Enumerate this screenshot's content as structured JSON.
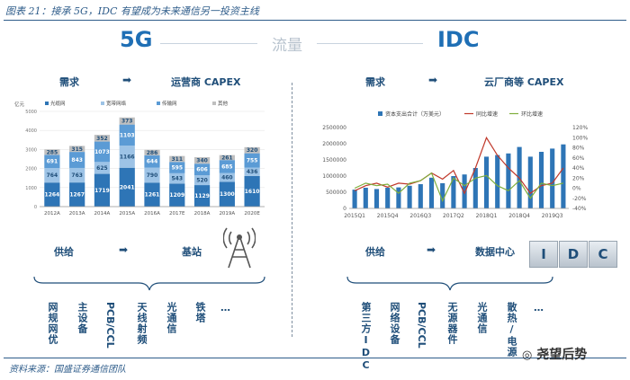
{
  "figure_title": "图表 21：接承 5G，IDC 有望成为未来通信另一投资主线",
  "header": {
    "left": "5G",
    "middle": "流量",
    "right": "IDC"
  },
  "left": {
    "demand": "需求",
    "demand_target": "运营商 CAPEX",
    "supply": "供给",
    "supply_target": "基站",
    "items": [
      "网规网优",
      "主设备",
      "PCB/CCL",
      "天线射频",
      "光通信",
      "铁塔",
      "…"
    ]
  },
  "right": {
    "demand": "需求",
    "demand_target": "云厂商等 CAPEX",
    "supply": "供给",
    "supply_target": "数据中心",
    "idc_letters": [
      "I",
      "D",
      "C"
    ],
    "items": [
      "第三方IDC",
      "网络设备",
      "PCB/CCL",
      "无源器件",
      "光通信",
      "散热/电源",
      "…"
    ]
  },
  "source": "资料来源：国盛证券通信团队",
  "watermark": "尧望后势",
  "colors": {
    "navy": "#1f4e79",
    "blue": "#1f6fb5",
    "dark_bar": "#2e75b6",
    "light_blue": "#9dc3e6",
    "gray": "#bfbfbf",
    "red": "#c0392b",
    "green": "#7fae3c"
  },
  "chart_data": [
    {
      "type": "bar",
      "stacked": true,
      "categories": [
        "2012A",
        "2013A",
        "2014A",
        "2015A",
        "2016A",
        "2017E",
        "2018A",
        "2019A",
        "2020E"
      ],
      "legend": [
        "光缆网",
        "宽带网络",
        "传输网",
        "其他"
      ],
      "series": [
        {
          "name": "光缆网",
          "values": [
            1264,
            1267,
            1719,
            2041,
            1261,
            1209,
            1129,
            1300,
            1610
          ]
        },
        {
          "name": "宽带网络",
          "values": [
            764,
            763,
            625,
            1166,
            790,
            543,
            520,
            460,
            436
          ]
        },
        {
          "name": "传输网",
          "values": [
            691,
            843,
            1073,
            1103,
            644,
            595,
            606,
            685,
            755
          ]
        },
        {
          "name": "其他",
          "values": [
            285,
            315,
            352,
            373,
            286,
            311,
            340,
            261,
            320
          ]
        }
      ],
      "ylabel": "亿元",
      "legend_position": "top"
    },
    {
      "type": "bar",
      "categories": [
        "2015Q1",
        "2015Q2",
        "2015Q3",
        "2015Q4",
        "2016Q1",
        "2016Q2",
        "2016Q3",
        "2016Q4",
        "2017Q1",
        "2017Q2",
        "2017Q3",
        "2017Q4",
        "2018Q1",
        "2018Q2",
        "2018Q3",
        "2018Q4",
        "2019Q1",
        "2019Q2",
        "2019Q3",
        "2019Q4"
      ],
      "x_tick_labels": [
        "2015Q1",
        "2015Q4",
        "2016Q3",
        "2017Q2",
        "2018Q1",
        "2018Q4",
        "2019Q3"
      ],
      "series": [
        {
          "name": "资本支出合计（万美元）",
          "type": "bar",
          "axis": "left",
          "values": [
            580000,
            640000,
            600000,
            640000,
            650000,
            700000,
            750000,
            950000,
            780000,
            1000000,
            1050000,
            1250000,
            1600000,
            1650000,
            1700000,
            1900000,
            1600000,
            1750000,
            1850000,
            1980000
          ]
        },
        {
          "name": "同比增速",
          "type": "line",
          "axis": "right",
          "values": [
            -5,
            5,
            10,
            2,
            10,
            8,
            15,
            30,
            18,
            35,
            -10,
            40,
            100,
            65,
            40,
            20,
            -10,
            5,
            10,
            40
          ]
        },
        {
          "name": "环比增速",
          "type": "line",
          "axis": "right",
          "values": [
            0,
            10,
            5,
            8,
            -10,
            10,
            15,
            30,
            -25,
            20,
            5,
            20,
            25,
            5,
            -5,
            15,
            -20,
            10,
            5,
            10
          ]
        }
      ],
      "ylim_left": [
        0,
        2500000
      ],
      "yticks_left": [
        "0",
        "500000",
        "1000000",
        "1500000",
        "2000000",
        "2500000"
      ],
      "ylim_right": [
        -40,
        120
      ],
      "yticks_right": [
        "-40%",
        "-20%",
        "0%",
        "20%",
        "40%",
        "60%",
        "80%",
        "100%",
        "120%"
      ],
      "legend_position": "top"
    }
  ]
}
